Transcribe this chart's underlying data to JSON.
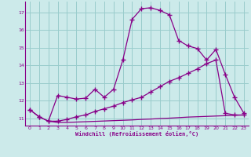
{
  "xlabel": "Windchill (Refroidissement éolien,°C)",
  "bg_color": "#cceaea",
  "line_color": "#880088",
  "grid_color": "#99cccc",
  "xlim": [
    -0.5,
    23.5
  ],
  "ylim": [
    10.6,
    17.6
  ],
  "xticks": [
    0,
    1,
    2,
    3,
    4,
    5,
    6,
    7,
    8,
    9,
    10,
    11,
    12,
    13,
    14,
    15,
    16,
    17,
    18,
    19,
    20,
    21,
    22,
    23
  ],
  "yticks": [
    11,
    12,
    13,
    14,
    15,
    16,
    17
  ],
  "curve1_x": [
    0,
    1,
    2,
    3,
    4,
    5,
    6,
    7,
    8,
    9,
    10,
    11,
    12,
    13,
    14,
    15,
    16,
    17,
    18,
    19,
    20,
    21,
    22,
    23
  ],
  "curve1_y": [
    11.5,
    11.1,
    10.85,
    12.3,
    12.2,
    12.1,
    12.15,
    12.65,
    12.2,
    12.65,
    14.3,
    16.6,
    17.2,
    17.25,
    17.1,
    16.85,
    15.4,
    15.1,
    14.95,
    14.3,
    14.9,
    13.5,
    12.2,
    11.3
  ],
  "curve2_x": [
    0,
    1,
    2,
    3,
    4,
    5,
    6,
    7,
    8,
    9,
    10,
    11,
    12,
    13,
    14,
    15,
    16,
    17,
    18,
    19,
    20,
    21,
    22,
    23
  ],
  "curve2_y": [
    11.5,
    11.1,
    10.85,
    10.85,
    10.95,
    11.1,
    11.2,
    11.4,
    11.55,
    11.7,
    11.9,
    12.05,
    12.2,
    12.5,
    12.8,
    13.1,
    13.3,
    13.55,
    13.8,
    14.1,
    14.3,
    11.3,
    11.2,
    11.2
  ],
  "curve3_x": [
    2,
    3,
    4,
    5,
    6,
    7,
    8,
    9,
    10,
    11,
    12,
    13,
    14,
    15,
    16,
    17,
    18,
    19,
    20,
    21,
    22,
    23
  ],
  "curve3_y": [
    10.85,
    10.78,
    10.78,
    10.8,
    10.82,
    10.84,
    10.86,
    10.88,
    10.9,
    10.92,
    10.95,
    10.97,
    11.0,
    11.02,
    11.05,
    11.08,
    11.1,
    11.12,
    11.14,
    11.16,
    11.18,
    11.2
  ]
}
